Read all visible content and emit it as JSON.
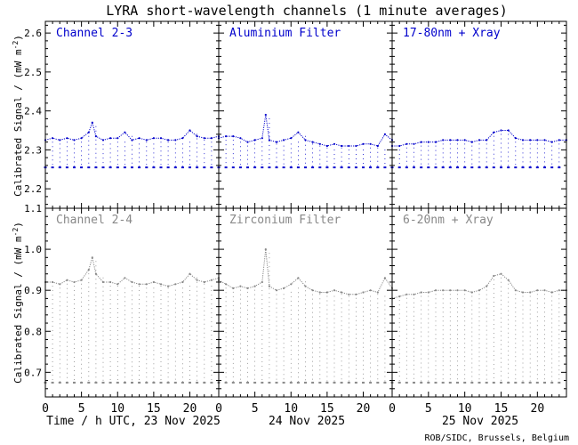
{
  "title": "LYRA short-wavelength channels (1 minute averages)",
  "ylabel": "Calibrated Signal / (mW m",
  "ylabel_sup": "-2",
  "ylabel_end": ")",
  "footer": "ROB/SIDC, Brussels, Belgium",
  "xaxis": {
    "ticks": [
      "0",
      "5",
      "10",
      "15",
      "20"
    ],
    "day_labels": [
      "Time / h UTC, 23 Nov 2025",
      "24 Nov 2025",
      "25 Nov 2025"
    ],
    "range_hours": [
      0,
      24
    ]
  },
  "colors": {
    "top": "#0000cc",
    "bottom": "#888888",
    "axis": "#000000"
  },
  "rows": [
    {
      "ylim": [
        2.15,
        2.63
      ],
      "yticks": [
        "2.2",
        "2.3",
        "2.4",
        "2.5",
        "2.6"
      ],
      "ytick_values": [
        2.2,
        2.3,
        2.4,
        2.5,
        2.6
      ]
    },
    {
      "ylim": [
        0.64,
        1.1
      ],
      "yticks": [
        "0.7",
        "0.8",
        "0.9",
        "1.0",
        "1.1"
      ],
      "ytick_values": [
        0.7,
        0.8,
        0.9,
        1.0,
        1.1
      ]
    }
  ],
  "chart_data": [
    {
      "type": "scatter",
      "title": "Channel 2-3",
      "color": "#0000cc",
      "series": [
        {
          "x": [
            0,
            1,
            2,
            3,
            4,
            5,
            6,
            6.5,
            7,
            8,
            9,
            10,
            11,
            12,
            13,
            14,
            15,
            16,
            17,
            18,
            19,
            20,
            21,
            22,
            23,
            24
          ],
          "y": [
            2.325,
            2.33,
            2.325,
            2.33,
            2.325,
            2.33,
            2.345,
            2.37,
            2.335,
            2.325,
            2.33,
            2.33,
            2.345,
            2.325,
            2.33,
            2.325,
            2.33,
            2.33,
            2.325,
            2.325,
            2.33,
            2.35,
            2.335,
            2.33,
            2.33,
            2.335
          ]
        },
        {
          "x": [
            0,
            1,
            2,
            3,
            4,
            5,
            6,
            7,
            8,
            9,
            10,
            11,
            12,
            13,
            14,
            15,
            16,
            17,
            18,
            19,
            20,
            21,
            22,
            23
          ],
          "y": [
            2.255,
            2.255,
            2.255,
            2.255,
            2.255,
            2.255,
            2.255,
            2.255,
            2.255,
            2.255,
            2.255,
            2.255,
            2.255,
            2.255,
            2.255,
            2.255,
            2.255,
            2.255,
            2.255,
            2.255,
            2.255,
            2.255,
            2.255,
            2.255
          ]
        }
      ]
    },
    {
      "type": "scatter",
      "title": "Aluminium Filter",
      "color": "#0000cc",
      "series": [
        {
          "x": [
            0,
            1,
            2,
            3,
            4,
            5,
            6,
            6.5,
            7,
            8,
            9,
            10,
            11,
            12,
            13,
            14,
            15,
            16,
            17,
            18,
            19,
            20,
            21,
            22,
            23,
            24
          ],
          "y": [
            2.33,
            2.335,
            2.335,
            2.33,
            2.32,
            2.325,
            2.33,
            2.39,
            2.325,
            2.32,
            2.325,
            2.33,
            2.345,
            2.325,
            2.32,
            2.315,
            2.31,
            2.315,
            2.31,
            2.31,
            2.31,
            2.315,
            2.315,
            2.31,
            2.34,
            2.325
          ]
        },
        {
          "x": [
            0,
            1,
            2,
            3,
            4,
            5,
            6,
            7,
            8,
            9,
            10,
            11,
            12,
            13,
            14,
            15,
            16,
            17,
            18,
            19,
            20,
            21,
            22,
            23
          ],
          "y": [
            2.255,
            2.255,
            2.255,
            2.255,
            2.255,
            2.255,
            2.255,
            2.255,
            2.255,
            2.255,
            2.255,
            2.255,
            2.255,
            2.255,
            2.255,
            2.255,
            2.255,
            2.255,
            2.255,
            2.255,
            2.255,
            2.255,
            2.255,
            2.255
          ]
        }
      ]
    },
    {
      "type": "scatter",
      "title": "17-80nm + Xray",
      "color": "#0000cc",
      "series": [
        {
          "x": [
            0,
            1,
            2,
            3,
            4,
            5,
            6,
            7,
            8,
            9,
            10,
            11,
            12,
            13,
            14,
            15,
            16,
            17,
            18,
            19,
            20,
            21,
            22,
            23,
            24
          ],
          "y": [
            2.31,
            2.31,
            2.315,
            2.315,
            2.32,
            2.32,
            2.32,
            2.325,
            2.325,
            2.325,
            2.325,
            2.32,
            2.325,
            2.325,
            2.345,
            2.35,
            2.35,
            2.33,
            2.325,
            2.325,
            2.325,
            2.325,
            2.32,
            2.325,
            2.325
          ]
        },
        {
          "x": [
            0,
            1,
            2,
            3,
            4,
            5,
            6,
            7,
            8,
            9,
            10,
            11,
            12,
            13,
            14,
            15,
            16,
            17,
            18,
            19,
            20,
            21,
            22,
            23
          ],
          "y": [
            2.255,
            2.255,
            2.255,
            2.255,
            2.255,
            2.255,
            2.255,
            2.255,
            2.255,
            2.255,
            2.255,
            2.255,
            2.255,
            2.255,
            2.255,
            2.255,
            2.255,
            2.255,
            2.255,
            2.255,
            2.255,
            2.255,
            2.255,
            2.255
          ]
        }
      ]
    },
    {
      "type": "scatter",
      "title": "Channel 2-4",
      "color": "#888888",
      "series": [
        {
          "x": [
            0,
            1,
            2,
            3,
            4,
            5,
            6,
            6.5,
            7,
            8,
            9,
            10,
            11,
            12,
            13,
            14,
            15,
            16,
            17,
            18,
            19,
            20,
            21,
            22,
            23,
            24
          ],
          "y": [
            0.92,
            0.92,
            0.915,
            0.925,
            0.92,
            0.925,
            0.95,
            0.98,
            0.94,
            0.92,
            0.92,
            0.915,
            0.93,
            0.92,
            0.915,
            0.915,
            0.92,
            0.915,
            0.91,
            0.915,
            0.92,
            0.94,
            0.925,
            0.92,
            0.925,
            0.93
          ]
        },
        {
          "x": [
            0,
            1,
            2,
            3,
            4,
            5,
            6,
            7,
            8,
            9,
            10,
            11,
            12,
            13,
            14,
            15,
            16,
            17,
            18,
            19,
            20,
            21,
            22,
            23
          ],
          "y": [
            0.675,
            0.675,
            0.675,
            0.675,
            0.675,
            0.675,
            0.675,
            0.675,
            0.675,
            0.675,
            0.675,
            0.675,
            0.675,
            0.675,
            0.675,
            0.675,
            0.675,
            0.675,
            0.675,
            0.675,
            0.675,
            0.675,
            0.675,
            0.675
          ]
        }
      ]
    },
    {
      "type": "scatter",
      "title": "Zirconium Filter",
      "color": "#888888",
      "series": [
        {
          "x": [
            0,
            1,
            2,
            3,
            4,
            5,
            6,
            6.5,
            7,
            8,
            9,
            10,
            11,
            12,
            13,
            14,
            15,
            16,
            17,
            18,
            19,
            20,
            21,
            22,
            23,
            24
          ],
          "y": [
            0.925,
            0.915,
            0.905,
            0.91,
            0.905,
            0.91,
            0.92,
            1.0,
            0.91,
            0.9,
            0.905,
            0.915,
            0.93,
            0.91,
            0.9,
            0.895,
            0.895,
            0.9,
            0.895,
            0.89,
            0.89,
            0.895,
            0.9,
            0.895,
            0.93,
            0.905
          ]
        },
        {
          "x": [
            0,
            1,
            2,
            3,
            4,
            5,
            6,
            7,
            8,
            9,
            10,
            11,
            12,
            13,
            14,
            15,
            16,
            17,
            18,
            19,
            20,
            21,
            22,
            23
          ],
          "y": [
            0.675,
            0.675,
            0.675,
            0.675,
            0.675,
            0.675,
            0.675,
            0.675,
            0.675,
            0.675,
            0.675,
            0.675,
            0.675,
            0.675,
            0.675,
            0.675,
            0.675,
            0.675,
            0.675,
            0.675,
            0.675,
            0.675,
            0.675,
            0.675
          ]
        }
      ]
    },
    {
      "type": "scatter",
      "title": "6-20nm + Xray",
      "color": "#888888",
      "series": [
        {
          "x": [
            0,
            1,
            2,
            3,
            4,
            5,
            6,
            7,
            8,
            9,
            10,
            11,
            12,
            13,
            14,
            15,
            16,
            17,
            18,
            19,
            20,
            21,
            22,
            23,
            24
          ],
          "y": [
            0.88,
            0.885,
            0.89,
            0.89,
            0.895,
            0.895,
            0.9,
            0.9,
            0.9,
            0.9,
            0.9,
            0.895,
            0.9,
            0.91,
            0.935,
            0.94,
            0.925,
            0.9,
            0.895,
            0.895,
            0.9,
            0.9,
            0.895,
            0.9,
            0.9
          ]
        },
        {
          "x": [
            0,
            1,
            2,
            3,
            4,
            5,
            6,
            7,
            8,
            9,
            10,
            11,
            12,
            13,
            14,
            15,
            16,
            17,
            18,
            19,
            20,
            21,
            22,
            23
          ],
          "y": [
            0.675,
            0.675,
            0.675,
            0.675,
            0.675,
            0.675,
            0.675,
            0.675,
            0.675,
            0.675,
            0.675,
            0.675,
            0.675,
            0.675,
            0.675,
            0.675,
            0.675,
            0.675,
            0.675,
            0.675,
            0.675,
            0.675,
            0.675,
            0.675
          ]
        }
      ]
    }
  ]
}
